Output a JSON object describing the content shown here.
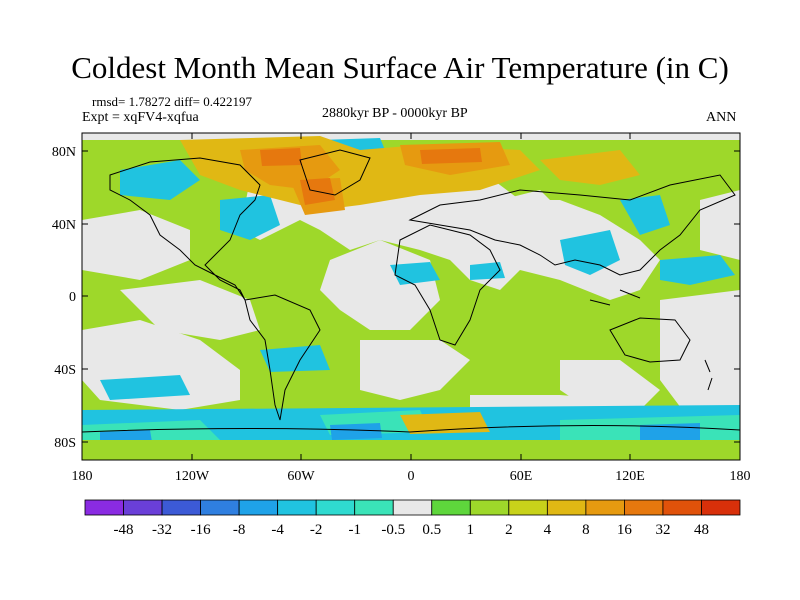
{
  "title": "Coldest Month Mean Surface Air Temperature (in C)",
  "stats": {
    "rmsd_diff": "rmsd= 1.78272 diff= 0.422197",
    "expt": "Expt = xqFV4-xqfua",
    "period": "2880kyr BP - 0000kyr BP",
    "season": "ANN"
  },
  "map": {
    "lat_ticks": [
      "80N",
      "40N",
      "0",
      "40S",
      "80S"
    ],
    "lon_ticks": [
      "180",
      "120W",
      "60W",
      "0",
      "60E",
      "120E",
      "180"
    ],
    "lat_range": [
      -90,
      90
    ],
    "lon_range": [
      -180,
      180
    ]
  },
  "colorbar": {
    "colors": [
      "#8a2be2",
      "#6a3fd8",
      "#3c5ad6",
      "#2f7fe0",
      "#1fa2e8",
      "#20c3e0",
      "#2fdad0",
      "#3ae3b8",
      "#e8e8e8",
      "#5ed63c",
      "#9ed82a",
      "#c8d21a",
      "#e0b814",
      "#e69a10",
      "#e6780e",
      "#e0520a",
      "#d8300a"
    ],
    "labels": [
      "-48",
      "-32",
      "-16",
      "-8",
      "-4",
      "-2",
      "-1",
      "-0.5",
      "0.5",
      "1",
      "2",
      "4",
      "8",
      "16",
      "32",
      "48"
    ]
  }
}
